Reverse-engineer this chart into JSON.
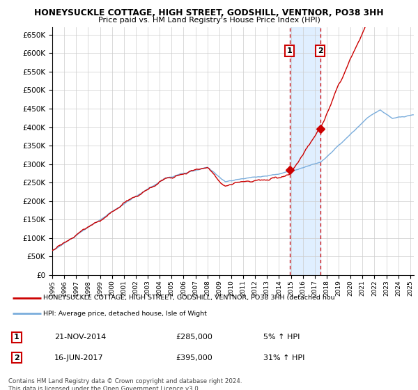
{
  "title": "HONEYSUCKLE COTTAGE, HIGH STREET, GODSHILL, VENTNOR, PO38 3HH",
  "subtitle": "Price paid vs. HM Land Registry's House Price Index (HPI)",
  "ylim": [
    0,
    670000
  ],
  "yticks": [
    0,
    50000,
    100000,
    150000,
    200000,
    250000,
    300000,
    350000,
    400000,
    450000,
    500000,
    550000,
    600000,
    650000
  ],
  "sale1_date": 2014.896,
  "sale1_price": 285000,
  "sale2_date": 2017.458,
  "sale2_price": 395000,
  "legend_line1": "HONEYSUCKLE COTTAGE, HIGH STREET, GODSHILL, VENTNOR, PO38 3HH (detached hou",
  "legend_line2": "HPI: Average price, detached house, Isle of Wight",
  "table_row1": [
    "1",
    "21-NOV-2014",
    "£285,000",
    "5% ↑ HPI"
  ],
  "table_row2": [
    "2",
    "16-JUN-2017",
    "£395,000",
    "31% ↑ HPI"
  ],
  "footnote": "Contains HM Land Registry data © Crown copyright and database right 2024.\nThis data is licensed under the Open Government Licence v3.0.",
  "line_red_color": "#cc0000",
  "line_blue_color": "#7aaddc",
  "background_color": "#ffffff",
  "grid_color": "#cccccc",
  "shade_color": "#ddeeff",
  "xmin": 1995,
  "xmax": 2025.3
}
